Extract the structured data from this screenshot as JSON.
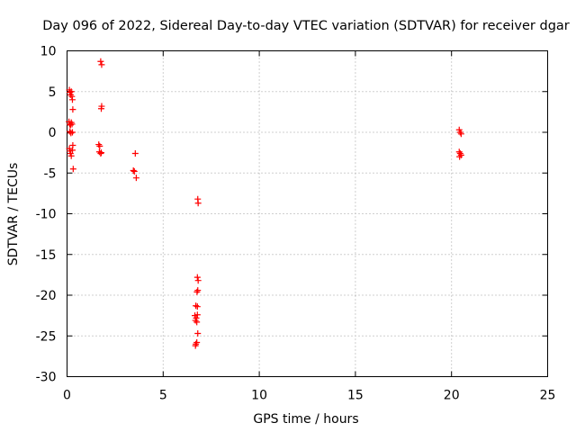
{
  "chart_data": {
    "type": "scatter",
    "title": "Day 096 of 2022, Sidereal Day-to-day VTEC variation (SDTVAR) for receiver dgar",
    "xlabel": "GPS time / hours",
    "ylabel": "SDTVAR / TECUs",
    "xlim": [
      0,
      25
    ],
    "ylim": [
      -30,
      10
    ],
    "xticks": [
      0,
      5,
      10,
      15,
      20,
      25
    ],
    "xtick_labels": [
      "0",
      "5",
      "10",
      "15",
      "20",
      "25"
    ],
    "yticks": [
      -30,
      -25,
      -20,
      -15,
      -10,
      -5,
      0,
      5,
      10
    ],
    "ytick_labels": [
      "-30",
      "-25",
      "-20",
      "-15",
      "-10",
      "-5",
      "0",
      "5",
      "10"
    ],
    "grid": true,
    "marker": "+",
    "marker_color": "#ff0000",
    "series": [
      {
        "name": "dgar",
        "points": [
          [
            0.12,
            5.2
          ],
          [
            0.15,
            4.9
          ],
          [
            0.18,
            4.6
          ],
          [
            0.22,
            5.0
          ],
          [
            0.25,
            4.4
          ],
          [
            0.28,
            4.0
          ],
          [
            0.3,
            2.8
          ],
          [
            0.1,
            1.3
          ],
          [
            0.14,
            1.0
          ],
          [
            0.18,
            0.9
          ],
          [
            0.22,
            1.2
          ],
          [
            0.26,
            1.0
          ],
          [
            0.15,
            0.1
          ],
          [
            0.2,
            -0.1
          ],
          [
            0.28,
            0.0
          ],
          [
            0.12,
            -2.0
          ],
          [
            0.15,
            -2.3
          ],
          [
            0.18,
            -2.6
          ],
          [
            0.22,
            -2.9
          ],
          [
            0.28,
            -2.2
          ],
          [
            0.3,
            -1.6
          ],
          [
            0.32,
            -4.5
          ],
          [
            1.75,
            8.7
          ],
          [
            1.8,
            8.3
          ],
          [
            1.8,
            3.2
          ],
          [
            1.78,
            2.9
          ],
          [
            1.65,
            -1.5
          ],
          [
            1.7,
            -1.7
          ],
          [
            1.68,
            -2.4
          ],
          [
            1.75,
            -2.6
          ],
          [
            1.78,
            -2.5
          ],
          [
            3.45,
            -4.7
          ],
          [
            3.5,
            -4.8
          ],
          [
            3.55,
            -2.6
          ],
          [
            3.6,
            -5.6
          ],
          [
            6.8,
            -8.2
          ],
          [
            6.82,
            -8.7
          ],
          [
            6.78,
            -17.8
          ],
          [
            6.82,
            -18.2
          ],
          [
            6.8,
            -19.4
          ],
          [
            6.76,
            -19.6
          ],
          [
            6.7,
            -21.3
          ],
          [
            6.78,
            -21.4
          ],
          [
            6.65,
            -22.5
          ],
          [
            6.72,
            -22.8
          ],
          [
            6.78,
            -22.4
          ],
          [
            6.68,
            -23.1
          ],
          [
            6.75,
            -23.3
          ],
          [
            6.8,
            -24.7
          ],
          [
            6.7,
            -26.0
          ],
          [
            6.75,
            -25.8
          ],
          [
            6.68,
            -26.2
          ],
          [
            20.4,
            0.3
          ],
          [
            20.45,
            0.0
          ],
          [
            20.5,
            -0.2
          ],
          [
            20.4,
            -2.4
          ],
          [
            20.45,
            -2.6
          ],
          [
            20.5,
            -2.8
          ],
          [
            20.42,
            -3.0
          ]
        ]
      }
    ]
  }
}
